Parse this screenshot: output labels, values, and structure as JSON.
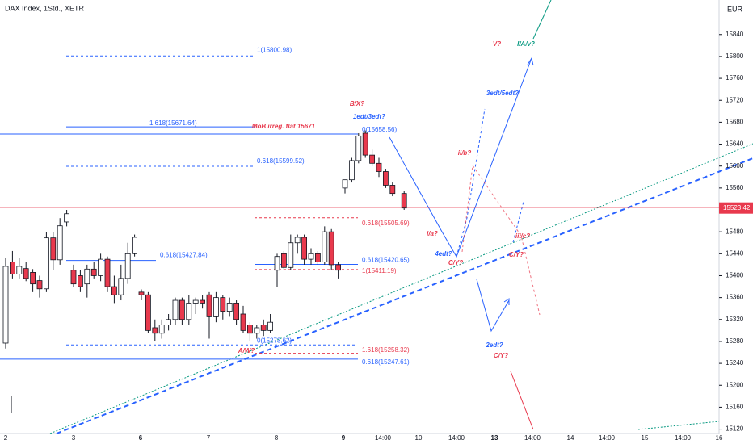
{
  "header": {
    "symbol": "DAX Index, 1Std., XETR",
    "currency": "EUR"
  },
  "chart_data": {
    "type": "candlestick",
    "up_color": "#ffffff",
    "down_color": "#e8394d",
    "ohlc": [
      [
        15277,
        15432,
        15267,
        15417
      ],
      [
        15425,
        15445,
        15395,
        15403
      ],
      [
        15403,
        15432,
        15395,
        15417
      ],
      [
        15413,
        15425,
        15390,
        15395
      ],
      [
        15406,
        15412,
        15370,
        15385
      ],
      [
        15391,
        15400,
        15360,
        15376
      ],
      [
        15376,
        15480,
        15370,
        15469
      ],
      [
        15469,
        15480,
        15410,
        15429
      ],
      [
        15429,
        15505,
        15420,
        15491
      ],
      [
        15498,
        15520,
        15490,
        15513
      ],
      [
        15410,
        15420,
        15380,
        15385
      ],
      [
        15400,
        15410,
        15370,
        15380
      ],
      [
        15385,
        15420,
        15360,
        15412
      ],
      [
        15412,
        15425,
        15395,
        15400
      ],
      [
        15400,
        15440,
        15390,
        15430
      ],
      [
        15430,
        15435,
        15370,
        15380
      ],
      [
        15380,
        15400,
        15350,
        15365
      ],
      [
        15365,
        15420,
        15355,
        15395
      ],
      [
        15395,
        15460,
        15385,
        15440
      ],
      [
        15440,
        15475,
        15435,
        15470
      ],
      [
        15370,
        15375,
        15355,
        15365
      ],
      [
        15365,
        15370,
        15295,
        15300
      ],
      [
        15305,
        15320,
        15280,
        15295
      ],
      [
        15295,
        15320,
        15285,
        15310
      ],
      [
        15310,
        15330,
        15300,
        15320
      ],
      [
        15320,
        15360,
        15310,
        15355
      ],
      [
        15355,
        15360,
        15310,
        15320
      ],
      [
        15320,
        15365,
        15310,
        15350
      ],
      [
        15350,
        15360,
        15330,
        15355
      ],
      [
        15355,
        15365,
        15340,
        15350
      ],
      [
        15365,
        15370,
        15285,
        15325
      ],
      [
        15325,
        15370,
        15315,
        15360
      ],
      [
        15360,
        15365,
        15320,
        15335
      ],
      [
        15335,
        15360,
        15325,
        15350
      ],
      [
        15350,
        15355,
        15310,
        15320
      ],
      [
        15330,
        15345,
        15295,
        15300
      ],
      [
        15310,
        15315,
        15280,
        15295
      ],
      [
        15295,
        15310,
        15285,
        15305
      ],
      [
        15310,
        15320,
        15290,
        15300
      ],
      [
        15300,
        15330,
        15295,
        15315
      ],
      [
        15410,
        15440,
        15380,
        15435
      ],
      [
        15440,
        15445,
        15410,
        15415
      ],
      [
        15415,
        15475,
        15410,
        15460
      ],
      [
        15460,
        15475,
        15440,
        15470
      ],
      [
        15470,
        15475,
        15420,
        15430
      ],
      [
        15430,
        15450,
        15420,
        15440
      ],
      [
        15440,
        15445,
        15420,
        15425
      ],
      [
        15425,
        15490,
        15420,
        15480
      ],
      [
        15480,
        15485,
        15410,
        15420
      ],
      [
        15420,
        15425,
        15395,
        15410
      ],
      [
        15560,
        15575,
        15550,
        15575
      ],
      [
        15575,
        15615,
        15570,
        15610
      ],
      [
        15610,
        15660,
        15605,
        15655
      ],
      [
        15660,
        15665,
        15615,
        15620
      ],
      [
        15620,
        15630,
        15600,
        15605
      ],
      [
        15605,
        15615,
        15580,
        15590
      ],
      [
        15590,
        15595,
        15560,
        15565
      ],
      [
        15565,
        15570,
        15545,
        15550
      ],
      [
        15550,
        15555,
        15520,
        15523.42
      ]
    ],
    "ylim": [
      15112,
      15903
    ],
    "yticks": [
      15120,
      15160,
      15200,
      15240,
      15280,
      15320,
      15360,
      15400,
      15440,
      15480,
      15520,
      15560,
      15600,
      15640,
      15680,
      15720,
      15760,
      15800,
      15840
    ],
    "x_labels": [
      "2",
      "3",
      "6",
      "7",
      "8",
      "9",
      "14:00",
      "10",
      "14:00",
      "13",
      "14:00",
      "14",
      "14:00",
      "15",
      "14:00",
      "16"
    ],
    "last_price": 15523.42,
    "levels": [
      {
        "label": "1(15800.98)",
        "value": 15800.98,
        "color": "#2962ff",
        "style": "dashed"
      },
      {
        "label": "1.618(15671.64)",
        "value": 15671.64,
        "color": "#2962ff",
        "style": "solid"
      },
      {
        "label": "0.618(15599.52)",
        "value": 15599.52,
        "color": "#2962ff",
        "style": "dashed"
      },
      {
        "label": "0.618(15427.84)",
        "value": 15427.84,
        "color": "#2962ff",
        "style": "solid"
      },
      {
        "label": "0(15273.62)",
        "value": 15273.62,
        "color": "#2962ff",
        "style": "dashed"
      },
      {
        "label": "0(15658.56)",
        "value": 15658.56,
        "color": "#2962ff",
        "style": "solid"
      },
      {
        "label": "0.618(15505.69)",
        "value": 15505.69,
        "color": "#e8394d",
        "style": "dashed"
      },
      {
        "label": "0.618(15420.65)",
        "value": 15420.65,
        "color": "#2962ff",
        "style": "solid"
      },
      {
        "label": "1(15411.19)",
        "value": 15411.19,
        "color": "#e8394d",
        "style": "dashed"
      },
      {
        "label": "1.618(15258.32)",
        "value": 15258.32,
        "color": "#e8394d",
        "style": "dashed"
      },
      {
        "label": "0.618(15247.61)",
        "value": 15247.61,
        "color": "#2962ff",
        "style": "solid"
      }
    ],
    "annotations": [
      {
        "text": "B/X?",
        "color": "#e8394d"
      },
      {
        "text": "1edt/3edt?",
        "color": "#2962ff"
      },
      {
        "text": "MoB irreg. flat 15671",
        "color": "#e8394d"
      },
      {
        "text": "V?",
        "color": "#e8394d"
      },
      {
        "text": "I/A/v?",
        "color": "#089981"
      },
      {
        "text": "3edt/5edt?",
        "color": "#2962ff"
      },
      {
        "text": "ii/b?",
        "color": "#e8394d"
      },
      {
        "text": "iii/c?",
        "color": "#e8394d"
      },
      {
        "text": "i/a?",
        "color": "#e8394d"
      },
      {
        "text": "4edt?",
        "color": "#2962ff"
      },
      {
        "text": "C/Y?",
        "color": "#e8394d"
      },
      {
        "text": "C/Y?",
        "color": "#e8394d"
      },
      {
        "text": "2edt?",
        "color": "#2962ff"
      },
      {
        "text": "C/Y?",
        "color": "#e8394d"
      },
      {
        "text": "A/W?",
        "color": "#e8394d"
      }
    ]
  }
}
